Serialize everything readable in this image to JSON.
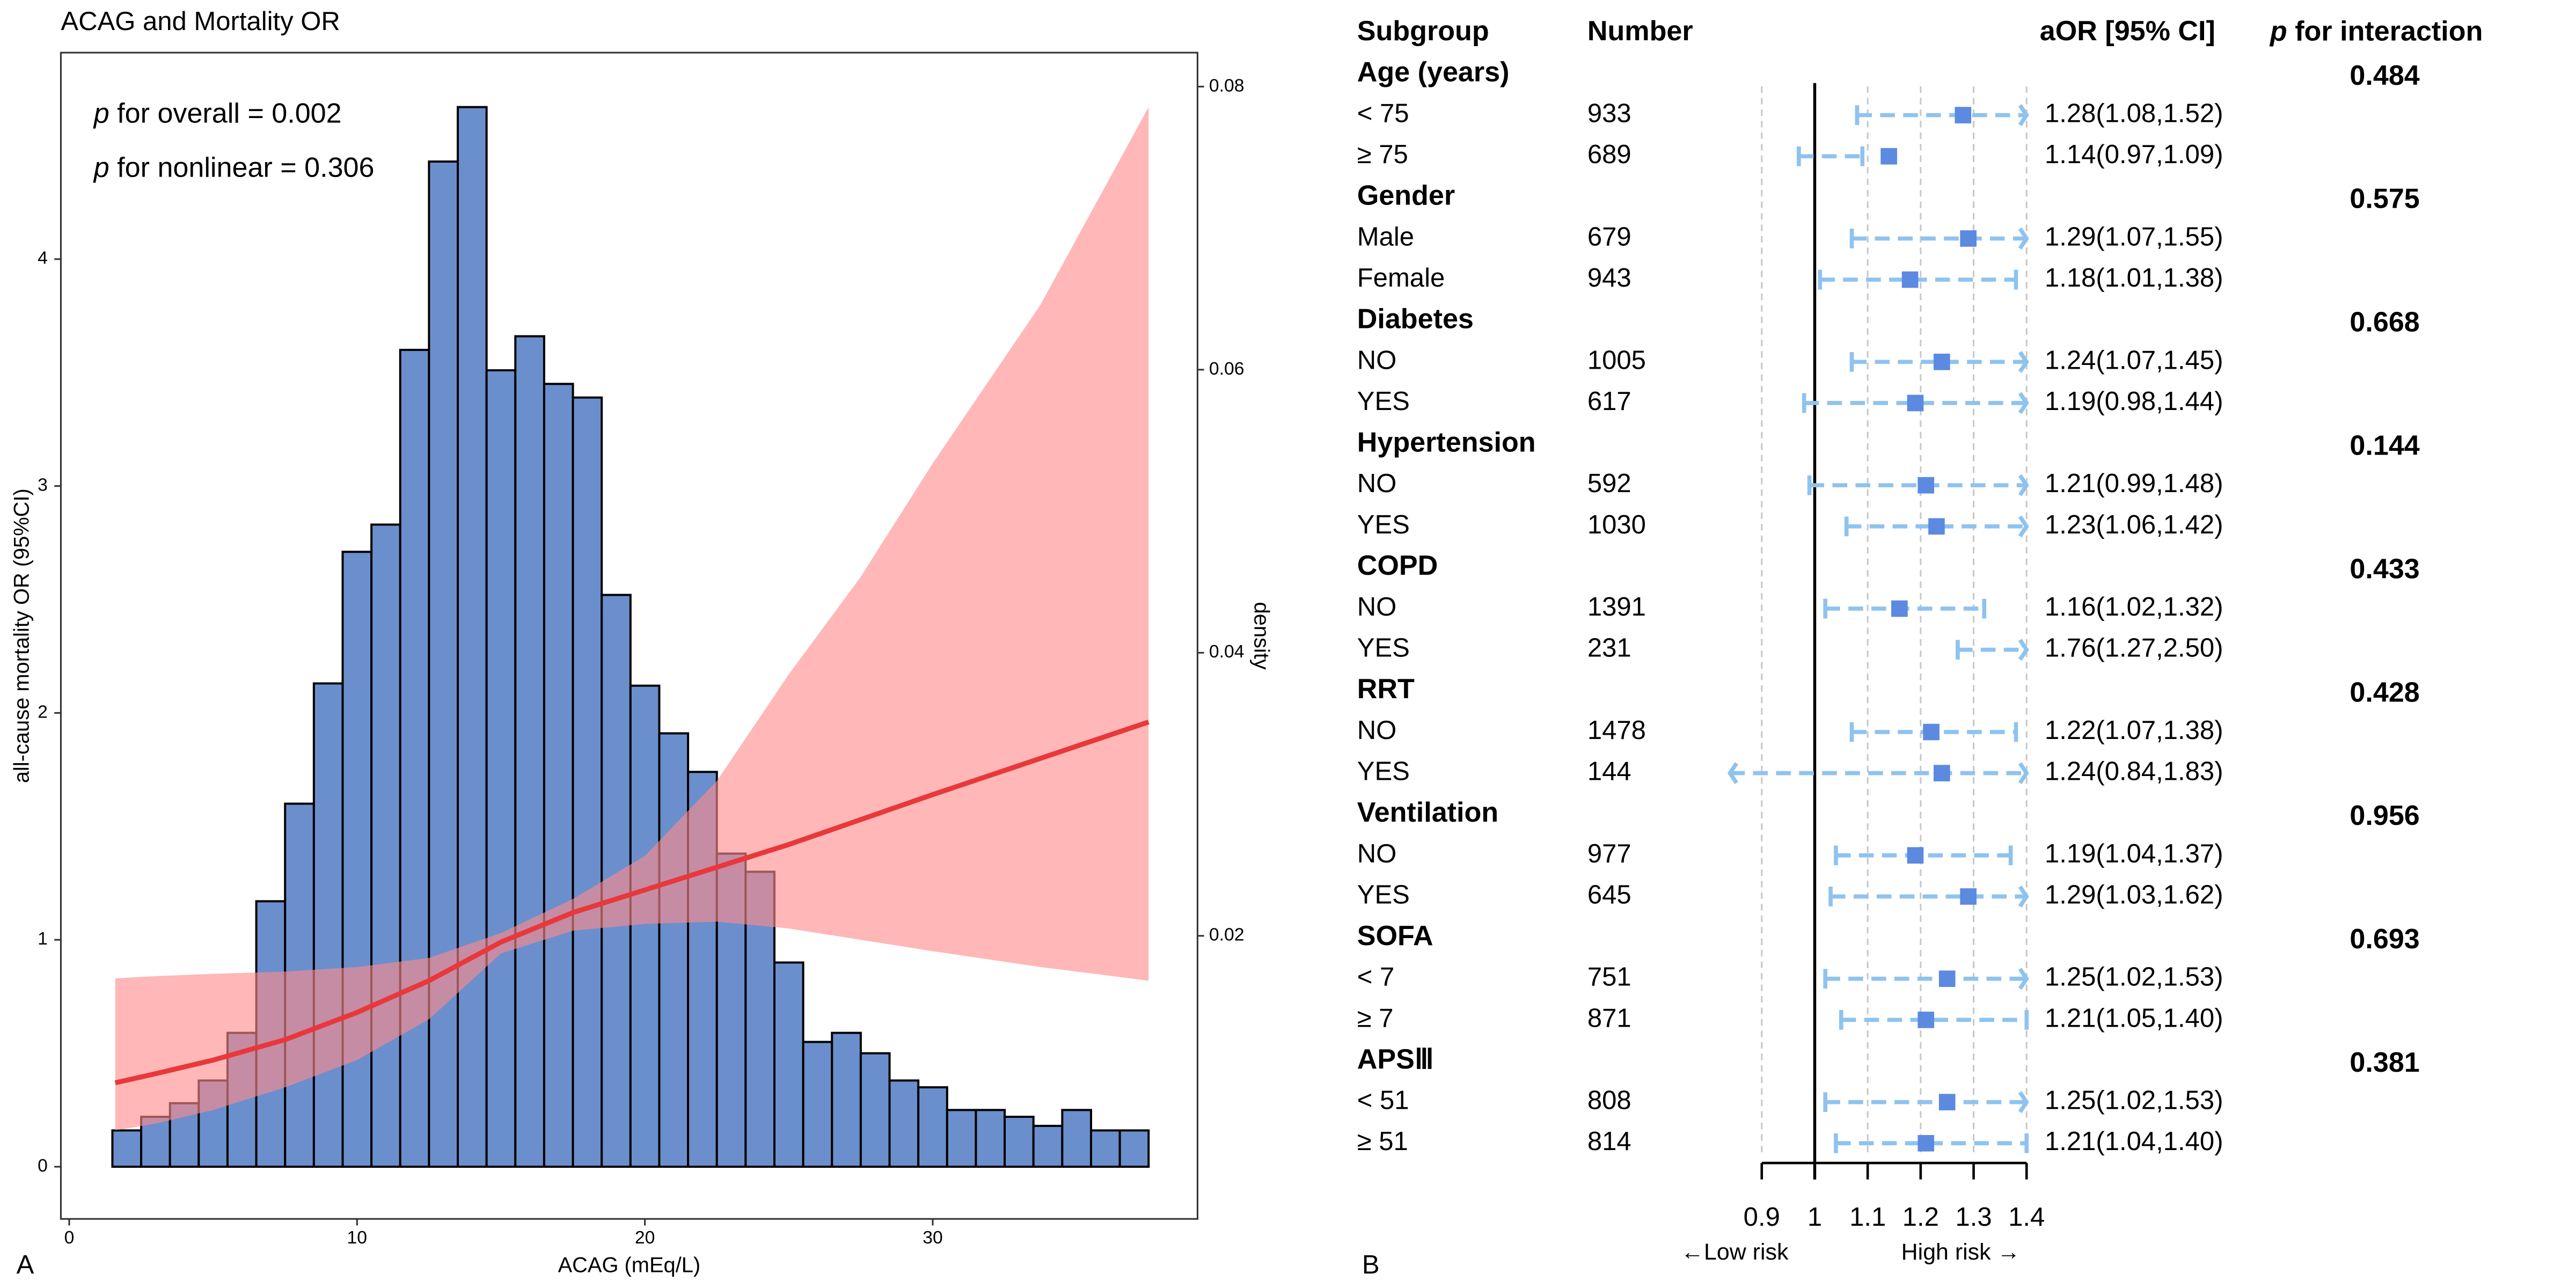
{
  "chart_data": [
    {
      "type": "histogram",
      "title": "ACAG and Mortality OR",
      "panel_label": "A",
      "xlabel": "ACAG (mEq/L)",
      "ylabel": "all-cause mortality OR (95%CI)",
      "y2label": "density",
      "annotations": [
        {
          "prefix": "p",
          "text": "for overall = 0.002"
        },
        {
          "prefix": "p",
          "text": "for nonlinear = 0.306"
        }
      ],
      "xlim": [
        -0.29,
        39.2
      ],
      "xticks": [
        0,
        10,
        20,
        30
      ],
      "ylim": [
        -0.23,
        4.91
      ],
      "yticks": [
        0,
        1,
        2,
        3,
        4
      ],
      "y2lim": [
        0,
        0.0824
      ],
      "y2ticks": [
        0.02,
        0.04,
        0.06,
        0.08
      ],
      "bins": [
        1.5,
        2.5,
        3.5,
        4.5,
        5.5,
        6.5,
        7.5,
        8.5,
        9.5,
        10.5,
        11.5,
        12.5,
        13.5,
        14.5,
        15.5,
        16.5,
        17.5,
        18.5,
        19.5,
        20.5,
        21.5,
        22.5,
        23.5,
        24.5,
        25.5,
        26.5,
        27.5,
        28.5,
        29.5,
        30.5,
        31.5,
        32.5,
        33.5,
        34.5,
        35.5,
        36.5,
        37.5
      ],
      "counts": [
        0.16,
        0.22,
        0.28,
        0.38,
        0.59,
        1.17,
        1.6,
        2.13,
        2.71,
        2.83,
        3.6,
        4.43,
        4.67,
        3.51,
        3.66,
        3.45,
        3.39,
        2.52,
        2.12,
        1.91,
        1.74,
        1.38,
        1.3,
        0.9,
        0.55,
        0.59,
        0.5,
        0.38,
        0.35,
        0.25,
        0.25,
        0.22,
        0.18,
        0.25,
        0.16,
        0.16
      ],
      "bar_color": "#6b8fcc",
      "curve": {
        "color": "#e8383b",
        "band_color": "#ff8a8a",
        "x": [
          1.6,
          3,
          5,
          7.5,
          10,
          12.5,
          15,
          17.5,
          20,
          22.5,
          25,
          27.5,
          30,
          33.75,
          37.5
        ],
        "values": [
          0.37,
          0.41,
          0.47,
          0.56,
          0.68,
          0.82,
          0.99,
          1.12,
          1.22,
          1.32,
          1.42,
          1.53,
          1.64,
          1.8,
          1.96
        ],
        "lower": [
          0.16,
          0.19,
          0.25,
          0.35,
          0.47,
          0.65,
          0.94,
          1.04,
          1.07,
          1.08,
          1.05,
          1.0,
          0.95,
          0.88,
          0.82
        ],
        "upper": [
          0.83,
          0.84,
          0.85,
          0.86,
          0.88,
          0.92,
          1.03,
          1.18,
          1.37,
          1.7,
          2.17,
          2.6,
          3.1,
          3.8,
          4.67
        ]
      }
    },
    {
      "type": "forest",
      "panel_label": "B",
      "header": {
        "subgroup": "Subgroup",
        "number": "Number",
        "aor": "aOR [95% CI]",
        "p_prefix": "p",
        "p_interaction": "for interaction"
      },
      "xlim": [
        0.9,
        1.4
      ],
      "xticks": [
        0.9,
        1,
        1.1,
        1.2,
        1.3,
        1.4
      ],
      "reference_line": 1,
      "low_label": "←Low risk",
      "high_label": "High risk →",
      "marker_color": "#5b8ae0",
      "ci_color": "#8fc3ef",
      "groups": [
        {
          "name": "Age (years)",
          "p_interaction": 0.484,
          "rows": [
            {
              "label": "< 75",
              "number": 933,
              "or": 1.28,
              "lower": 1.08,
              "upper": 1.52,
              "value_label": "1.28(1.08,1.52)"
            },
            {
              "label": "≥ 75",
              "number": 689,
              "or": 1.14,
              "lower": 0.97,
              "upper": 1.09,
              "value_label": "1.14(0.97,1.09)"
            }
          ]
        },
        {
          "name": "Gender",
          "p_interaction": 0.575,
          "rows": [
            {
              "label": "Male",
              "number": 679,
              "or": 1.29,
              "lower": 1.07,
              "upper": 1.55,
              "value_label": "1.29(1.07,1.55)"
            },
            {
              "label": "Female",
              "number": 943,
              "or": 1.18,
              "lower": 1.01,
              "upper": 1.38,
              "value_label": "1.18(1.01,1.38)"
            }
          ]
        },
        {
          "name": "Diabetes",
          "p_interaction": 0.668,
          "rows": [
            {
              "label": "NO",
              "number": 1005,
              "or": 1.24,
              "lower": 1.07,
              "upper": 1.45,
              "value_label": "1.24(1.07,1.45)"
            },
            {
              "label": "YES",
              "number": 617,
              "or": 1.19,
              "lower": 0.98,
              "upper": 1.44,
              "value_label": "1.19(0.98,1.44)"
            }
          ]
        },
        {
          "name": "Hypertension",
          "p_interaction": 0.144,
          "rows": [
            {
              "label": "NO",
              "number": 592,
              "or": 1.21,
              "lower": 0.99,
              "upper": 1.48,
              "value_label": "1.21(0.99,1.48)"
            },
            {
              "label": "YES",
              "number": 1030,
              "or": 1.23,
              "lower": 1.06,
              "upper": 1.42,
              "value_label": "1.23(1.06,1.42)"
            }
          ]
        },
        {
          "name": "COPD",
          "p_interaction": 0.433,
          "rows": [
            {
              "label": "NO",
              "number": 1391,
              "or": 1.16,
              "lower": 1.02,
              "upper": 1.32,
              "value_label": "1.16(1.02,1.32)"
            },
            {
              "label": "YES",
              "number": 231,
              "or": 1.76,
              "lower": 1.27,
              "upper": 2.5,
              "value_label": "1.76(1.27,2.50)"
            }
          ]
        },
        {
          "name": "RRT",
          "p_interaction": 0.428,
          "rows": [
            {
              "label": "NO",
              "number": 1478,
              "or": 1.22,
              "lower": 1.07,
              "upper": 1.38,
              "value_label": "1.22(1.07,1.38)"
            },
            {
              "label": "YES",
              "number": 144,
              "or": 1.24,
              "lower": 0.84,
              "upper": 1.83,
              "value_label": "1.24(0.84,1.83)"
            }
          ]
        },
        {
          "name": "Ventilation",
          "p_interaction": 0.956,
          "rows": [
            {
              "label": "NO",
              "number": 977,
              "or": 1.19,
              "lower": 1.04,
              "upper": 1.37,
              "value_label": "1.19(1.04,1.37)"
            },
            {
              "label": "YES",
              "number": 645,
              "or": 1.29,
              "lower": 1.03,
              "upper": 1.62,
              "value_label": "1.29(1.03,1.62)"
            }
          ]
        },
        {
          "name": "SOFA",
          "p_interaction": 0.693,
          "rows": [
            {
              "label": "< 7",
              "number": 751,
              "or": 1.25,
              "lower": 1.02,
              "upper": 1.53,
              "value_label": "1.25(1.02,1.53)"
            },
            {
              "label": "≥ 7",
              "number": 871,
              "or": 1.21,
              "lower": 1.05,
              "upper": 1.4,
              "value_label": "1.21(1.05,1.40)"
            }
          ]
        },
        {
          "name": "APSⅢ",
          "p_interaction": 0.381,
          "rows": [
            {
              "label": "< 51",
              "number": 808,
              "or": 1.25,
              "lower": 1.02,
              "upper": 1.53,
              "value_label": "1.25(1.02,1.53)"
            },
            {
              "label": "≥ 51",
              "number": 814,
              "or": 1.21,
              "lower": 1.04,
              "upper": 1.4,
              "value_label": "1.21(1.04,1.40)"
            }
          ]
        }
      ]
    }
  ]
}
